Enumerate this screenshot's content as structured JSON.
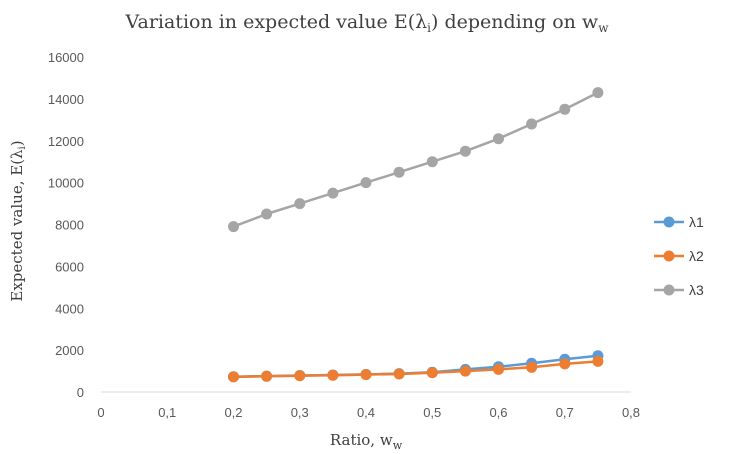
{
  "chart_data": {
    "type": "line",
    "title": "Variation in expected value E(λ",
    "title_sub": "i",
    "title_tail": ") depending on w",
    "title_sub2": "w",
    "xlabel": "Ratio, w",
    "xlabel_sub": "w",
    "ylabel": "Expected value, E(λ",
    "ylabel_sub": "i",
    "ylabel_tail": ")",
    "xlim": [
      0,
      0.8
    ],
    "ylim": [
      0,
      16000
    ],
    "x_ticks": [
      "0",
      "0,1",
      "0,2",
      "0,3",
      "0,4",
      "0,5",
      "0,6",
      "0,7",
      "0,8"
    ],
    "y_ticks": [
      "0",
      "2000",
      "4000",
      "6000",
      "8000",
      "10000",
      "12000",
      "14000",
      "16000"
    ],
    "grid": false,
    "legend_position": "right",
    "x": [
      0.2,
      0.25,
      0.3,
      0.35,
      0.4,
      0.45,
      0.5,
      0.55,
      0.6,
      0.65,
      0.7,
      0.75
    ],
    "series": [
      {
        "name": "λ1",
        "color": "#5B9BD5",
        "values": [
          730,
          760,
          790,
          810,
          840,
          880,
          940,
          1080,
          1210,
          1370,
          1560,
          1730
        ]
      },
      {
        "name": "λ2",
        "color": "#ED7D31",
        "values": [
          720,
          750,
          780,
          800,
          830,
          860,
          920,
          1000,
          1080,
          1180,
          1340,
          1460
        ]
      },
      {
        "name": "λ3",
        "color": "#A5A5A5",
        "values": [
          7900,
          8500,
          9000,
          9500,
          10000,
          10500,
          11000,
          11500,
          12100,
          12800,
          13500,
          14300
        ]
      }
    ]
  }
}
